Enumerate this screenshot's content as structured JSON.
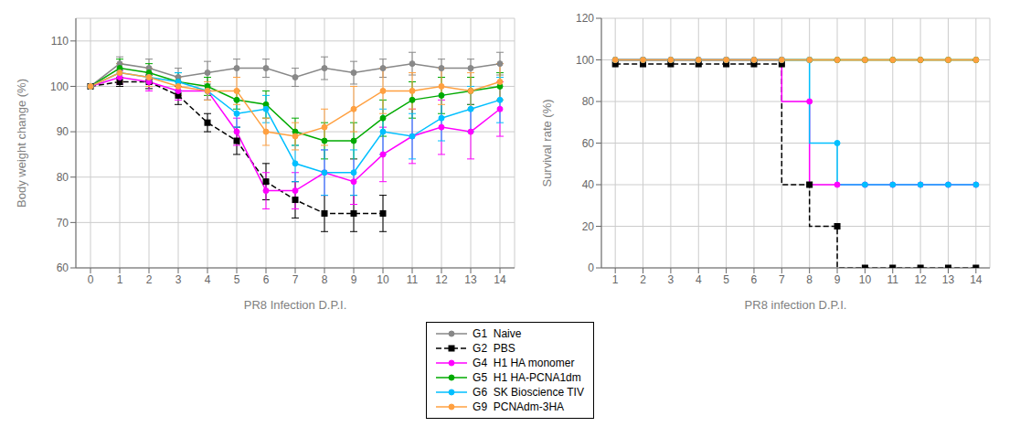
{
  "chart_data": [
    {
      "type": "line",
      "xlabel": "PR8 Infection D.P.I.",
      "ylabel": "Body weight change (%)",
      "xlim": [
        -0.5,
        14.5
      ],
      "xticks": [
        0,
        1,
        2,
        3,
        4,
        5,
        6,
        7,
        8,
        9,
        10,
        11,
        12,
        13,
        14
      ],
      "ylim": [
        60,
        115
      ],
      "yticks": [
        60,
        70,
        80,
        90,
        100,
        110
      ],
      "grid": true,
      "series": [
        {
          "name": "G1  Naive",
          "color": "#888888",
          "line_style": "solid",
          "marker": "circle",
          "x": [
            0,
            1,
            2,
            3,
            4,
            5,
            6,
            7,
            8,
            9,
            10,
            11,
            12,
            13,
            14
          ],
          "values": [
            100,
            105,
            104,
            102,
            103,
            104,
            104,
            102,
            104,
            103,
            104,
            105,
            104,
            104,
            105
          ],
          "errors": [
            0,
            1.5,
            2,
            2,
            2.5,
            2,
            2,
            2,
            2.5,
            2.5,
            2,
            2.5,
            2,
            2,
            2.5
          ]
        },
        {
          "name": "G2  PBS",
          "color": "#000000",
          "line_style": "dashed",
          "marker": "square",
          "x": [
            0,
            1,
            2,
            3,
            4,
            5,
            6,
            7,
            8,
            9,
            10
          ],
          "values": [
            100,
            101,
            101,
            98,
            92,
            88,
            79,
            75,
            72,
            72,
            72
          ],
          "errors": [
            0,
            1,
            1.5,
            2,
            2,
            3,
            4,
            4,
            4,
            4,
            4
          ]
        },
        {
          "name": "G4  H1 HA monomer",
          "color": "#ff00ff",
          "line_style": "solid",
          "marker": "circle",
          "x": [
            0,
            1,
            2,
            3,
            4,
            5,
            6,
            7,
            8,
            9,
            10,
            11,
            12,
            13,
            14
          ],
          "values": [
            100,
            102,
            101,
            99,
            99,
            90,
            77,
            77,
            81,
            79,
            85,
            89,
            91,
            90,
            95
          ],
          "errors": [
            0,
            1.5,
            2,
            2,
            2,
            3,
            4,
            4,
            5,
            5,
            6,
            6,
            6,
            6,
            6
          ]
        },
        {
          "name": "G5  H1 HA-PCNA1dm",
          "color": "#00aa00",
          "line_style": "solid",
          "marker": "circle",
          "x": [
            0,
            1,
            2,
            3,
            4,
            5,
            6,
            7,
            8,
            9,
            10,
            11,
            12,
            13,
            14
          ],
          "values": [
            100,
            104,
            103,
            101,
            100,
            97,
            96,
            90,
            88,
            88,
            93,
            97,
            98,
            99,
            100
          ],
          "errors": [
            0,
            2,
            2,
            2,
            2,
            2,
            3,
            3,
            4,
            4,
            4,
            4,
            4,
            3,
            3
          ]
        },
        {
          "name": "G6  SK Bioscience TIV",
          "color": "#00bfff",
          "line_style": "solid",
          "marker": "circle",
          "x": [
            0,
            1,
            2,
            3,
            4,
            5,
            6,
            7,
            8,
            9,
            10,
            11,
            12,
            13,
            14
          ],
          "values": [
            100,
            103,
            102,
            101,
            99,
            94,
            95,
            83,
            81,
            81,
            90,
            89,
            93,
            95,
            97
          ],
          "errors": [
            0,
            2,
            2,
            2,
            2,
            3,
            3,
            4,
            5,
            5,
            5,
            5,
            5,
            5,
            5
          ]
        },
        {
          "name": "G9  PCNAdm-3HA",
          "color": "#ffa040",
          "line_style": "solid",
          "marker": "circle",
          "x": [
            0,
            1,
            2,
            3,
            4,
            5,
            6,
            7,
            8,
            9,
            10,
            11,
            12,
            13,
            14
          ],
          "values": [
            100,
            103,
            102,
            100,
            99,
            99,
            90,
            89,
            91,
            95,
            99,
            99,
            100,
            99,
            101
          ],
          "errors": [
            0,
            2,
            2,
            2,
            2,
            3,
            3,
            3,
            4,
            5,
            5,
            4,
            4,
            4,
            4
          ]
        }
      ]
    },
    {
      "type": "step",
      "xlabel": "PR8 infection D.P.I.",
      "ylabel": "Survival rate (%)",
      "xlim": [
        0.5,
        14.5
      ],
      "xticks": [
        1,
        2,
        3,
        4,
        5,
        6,
        7,
        8,
        9,
        10,
        11,
        12,
        13,
        14
      ],
      "ylim": [
        0,
        120
      ],
      "yticks": [
        0,
        20,
        40,
        60,
        80,
        100,
        120
      ],
      "grid": true,
      "x": [
        1,
        2,
        3,
        4,
        5,
        6,
        7,
        8,
        9,
        10,
        11,
        12,
        13,
        14
      ],
      "series": [
        {
          "name": "G1  Naive",
          "color": "#888888",
          "line_style": "solid",
          "marker": "circle",
          "values": [
            100,
            100,
            100,
            100,
            100,
            100,
            100,
            100,
            100,
            100,
            100,
            100,
            100,
            100
          ]
        },
        {
          "name": "G2  PBS",
          "color": "#000000",
          "line_style": "dashed",
          "marker": "square",
          "values": [
            98,
            98,
            98,
            98,
            98,
            98,
            98,
            40,
            20,
            0,
            0,
            0,
            0,
            0
          ]
        },
        {
          "name": "G4  H1 HA monomer",
          "color": "#ff00ff",
          "line_style": "solid",
          "marker": "circle",
          "values": [
            100,
            100,
            100,
            100,
            100,
            100,
            100,
            80,
            40,
            40,
            40,
            40,
            40,
            40
          ]
        },
        {
          "name": "G5  H1 HA-PCNA1dm",
          "color": "#00aa00",
          "line_style": "solid",
          "marker": "circle",
          "values": [
            100,
            100,
            100,
            100,
            100,
            100,
            100,
            100,
            100,
            100,
            100,
            100,
            100,
            100
          ]
        },
        {
          "name": "G6  SK Bioscience TIV",
          "color": "#00bfff",
          "line_style": "solid",
          "marker": "circle",
          "values": [
            100,
            100,
            100,
            100,
            100,
            100,
            100,
            100,
            60,
            40,
            40,
            40,
            40,
            40
          ]
        },
        {
          "name": "G9  PCNAdm-3HA",
          "color": "#ffa040",
          "line_style": "solid",
          "marker": "circle",
          "values": [
            100,
            100,
            100,
            100,
            100,
            100,
            100,
            100,
            100,
            100,
            100,
            100,
            100,
            100
          ]
        }
      ]
    }
  ]
}
